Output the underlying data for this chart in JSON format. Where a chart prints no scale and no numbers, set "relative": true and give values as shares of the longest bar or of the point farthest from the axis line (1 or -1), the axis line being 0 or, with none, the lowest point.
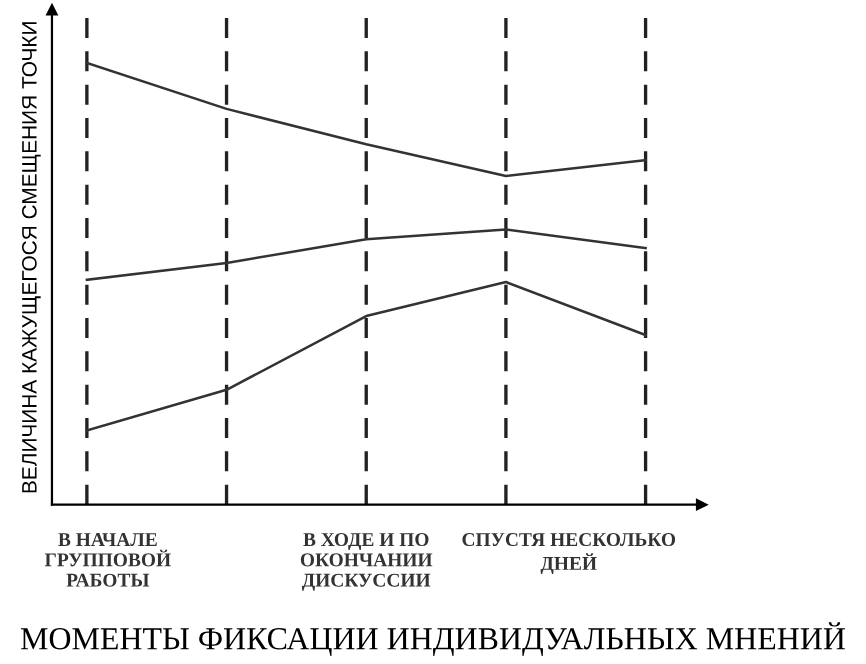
{
  "chart_data": {
    "type": "line",
    "relative": true,
    "xlabel": "МОМЕНТЫ ФИКСАЦИИ ИНДИВИДУАЛЬНЫХ МНЕНИЙ",
    "ylabel": "ВЕЛИЧИНА КАЖУЩЕГОСЯ СМЕЩЕНИЯ ТОЧКИ",
    "categories": [
      null,
      null,
      null,
      null,
      null
    ],
    "annotations": [
      "В НАЧАЛЕ\nГРУППОВОЙ\nРАБОТЫ",
      "В ХОДЕ И ПО\nОКОНЧАНИИ\nДИСКУССИИ",
      "СПУСТЯ НЕСКОЛЬКО\nДНЕЙ"
    ],
    "series": [
      {
        "color": "#333333",
        "values": [
          1,
          0.896,
          0.816,
          0.744,
          0.78
        ]
      },
      {
        "color": "#333333",
        "values": [
          0.509,
          0.547,
          0.601,
          0.623,
          0.581
        ]
      },
      {
        "color": "#333333",
        "values": [
          0.168,
          0.26,
          0.427,
          0.504,
          0.384
        ]
      }
    ],
    "grid": "x",
    "legend": false,
    "marker": "none",
    "line_style": "solid"
  }
}
